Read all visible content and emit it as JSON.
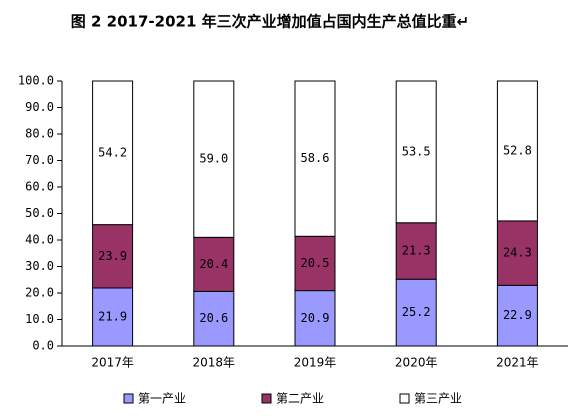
{
  "chart_data": {
    "type": "stacked-bar",
    "title": "图 2 2017-2021 年三次产业增加值占国内生产总值比重↵",
    "categories": [
      "2017年",
      "2018年",
      "2019年",
      "2020年",
      "2021年"
    ],
    "series": [
      {
        "name": "第一产业",
        "color": "#9999ff",
        "values": [
          21.9,
          20.6,
          20.9,
          25.2,
          22.9
        ]
      },
      {
        "name": "第二产业",
        "color": "#993366",
        "values": [
          23.9,
          20.4,
          20.5,
          21.3,
          24.3
        ]
      },
      {
        "name": "第三产业",
        "color": "#ffffff",
        "values": [
          54.2,
          59.0,
          58.6,
          53.5,
          52.8
        ],
        "value_labels": [
          "54.2",
          "59.0",
          "58.6",
          "53.5",
          "52.8"
        ]
      }
    ],
    "ylim": [
      0,
      100
    ],
    "yticks": [
      {
        "value": 0,
        "label": "0.0"
      },
      {
        "value": 10,
        "label": "10.0"
      },
      {
        "value": 20,
        "label": "20.0"
      },
      {
        "value": 30,
        "label": "30.0"
      },
      {
        "value": 40,
        "label": "40.0"
      },
      {
        "value": 50,
        "label": "50.0"
      },
      {
        "value": 60,
        "label": "60.0"
      },
      {
        "value": 70,
        "label": "70.0"
      },
      {
        "value": 80,
        "label": "80.0"
      },
      {
        "value": 90,
        "label": "90.0"
      },
      {
        "value": 100,
        "label": "100.0"
      }
    ],
    "grid": false,
    "legend": "bottom"
  }
}
